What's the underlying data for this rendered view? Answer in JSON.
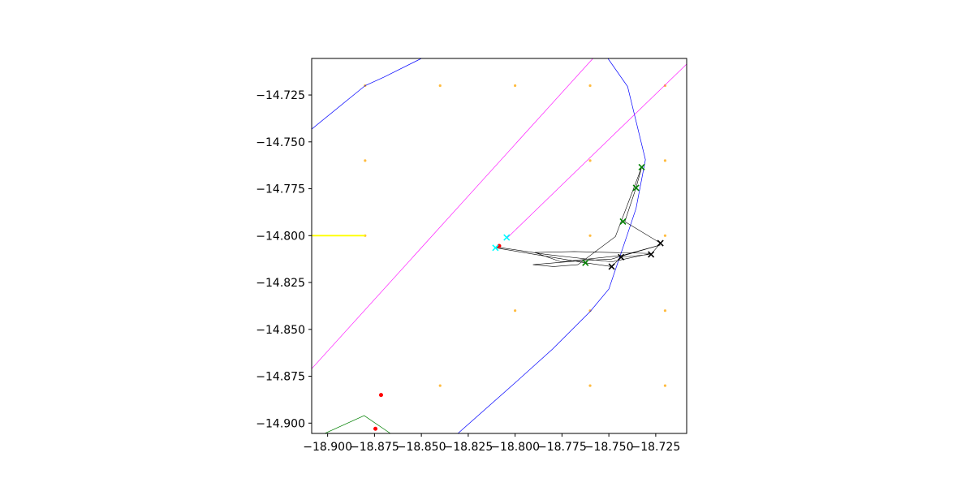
{
  "chart_data": {
    "type": "scatter",
    "title": "",
    "xlabel": "",
    "ylabel": "",
    "xlim": [
      -18.9085,
      -18.7085
    ],
    "ylim": [
      -14.9055,
      -14.7055
    ],
    "grid": false,
    "legend": "none",
    "x_ticks": [
      {
        "value": -18.9,
        "label": "−18.900"
      },
      {
        "value": -18.875,
        "label": "−18.875"
      },
      {
        "value": -18.85,
        "label": "−18.850"
      },
      {
        "value": -18.825,
        "label": "−18.825"
      },
      {
        "value": -18.8,
        "label": "−18.800"
      },
      {
        "value": -18.775,
        "label": "−18.775"
      },
      {
        "value": -18.75,
        "label": "−18.750"
      },
      {
        "value": -18.725,
        "label": "−18.725"
      }
    ],
    "y_ticks": [
      {
        "value": -14.725,
        "label": "−14.725"
      },
      {
        "value": -14.75,
        "label": "−14.750"
      },
      {
        "value": -14.775,
        "label": "−14.775"
      },
      {
        "value": -14.8,
        "label": "−14.800"
      },
      {
        "value": -14.825,
        "label": "−14.825"
      },
      {
        "value": -14.85,
        "label": "−14.850"
      },
      {
        "value": -14.875,
        "label": "−14.875"
      },
      {
        "value": -14.9,
        "label": "−14.900"
      }
    ],
    "colors": {
      "grid_points": "#ffa500",
      "blue_lines": "#0000ff",
      "magenta_lines": "#ff00ff",
      "yellow_line": "#ffff00",
      "green_line": "#008000",
      "red_points": "#ff0000",
      "path": "#000000",
      "black_markers": "#000000",
      "green_markers": "#008000",
      "cyan_markers": "#00ffff"
    },
    "grid_points": [
      [
        -18.88,
        -14.72
      ],
      [
        -18.84,
        -14.72
      ],
      [
        -18.8,
        -14.72
      ],
      [
        -18.76,
        -14.72
      ],
      [
        -18.72,
        -14.72
      ],
      [
        -18.88,
        -14.76
      ],
      [
        -18.76,
        -14.76
      ],
      [
        -18.72,
        -14.76
      ],
      [
        -18.88,
        -14.8
      ],
      [
        -18.76,
        -14.8
      ],
      [
        -18.72,
        -14.8
      ],
      [
        -18.8,
        -14.84
      ],
      [
        -18.76,
        -14.84
      ],
      [
        -18.72,
        -14.84
      ],
      [
        -18.84,
        -14.88
      ],
      [
        -18.76,
        -14.88
      ],
      [
        -18.72,
        -14.88
      ]
    ],
    "blue_lines": [
      [
        [
          -18.9085,
          -14.7432
        ],
        [
          -18.88,
          -14.72
        ],
        [
          -18.87,
          -14.7155
        ],
        [
          -18.85,
          -14.7055
        ]
      ],
      [
        [
          -18.7505,
          -14.7055
        ],
        [
          -18.74,
          -14.7205
        ],
        [
          -18.7305,
          -14.7595
        ],
        [
          -18.7355,
          -14.7855
        ],
        [
          -18.7405,
          -14.8005
        ],
        [
          -18.75,
          -14.8285
        ],
        [
          -18.76,
          -14.8405
        ],
        [
          -18.78,
          -14.8605
        ],
        [
          -18.8,
          -14.8785
        ],
        [
          -18.8305,
          -14.9055
        ]
      ]
    ],
    "magenta_lines": [
      [
        [
          -18.9085,
          -14.871
        ],
        [
          -18.7585,
          -14.7055
        ]
      ],
      [
        [
          -18.8045,
          -14.8015
        ],
        [
          -18.7085,
          -14.7085
        ]
      ]
    ],
    "yellow_line": [
      [
        -18.9085,
        -14.8
      ],
      [
        -18.88,
        -14.8
      ]
    ],
    "green_line": [
      [
        -18.9015,
        -14.9055
      ],
      [
        -18.8805,
        -14.896
      ],
      [
        -18.8665,
        -14.9055
      ]
    ],
    "red_points": [
      [
        -18.8085,
        -14.8055
      ],
      [
        -18.8715,
        -14.885
      ],
      [
        -18.8745,
        -14.903
      ]
    ],
    "path_points": [
      [
        -18.8105,
        -14.8065
      ],
      [
        -18.7625,
        -14.8145
      ],
      [
        -18.7485,
        -14.8165
      ],
      [
        -18.7435,
        -14.8115
      ],
      [
        -18.7275,
        -14.81
      ],
      [
        -18.7225,
        -14.804
      ],
      [
        -18.7415,
        -14.7925
      ],
      [
        -18.7355,
        -14.7745
      ],
      [
        -18.7325,
        -14.7635
      ],
      [
        -18.7465,
        -14.8005
      ],
      [
        -18.7665,
        -14.8155
      ],
      [
        -18.7795,
        -14.8165
      ],
      [
        -18.7905,
        -14.8155
      ],
      [
        -18.7665,
        -14.8135
      ],
      [
        -18.7485,
        -14.8125
      ],
      [
        -18.7225,
        -14.805
      ],
      [
        -18.7425,
        -14.8105
      ],
      [
        -18.7755,
        -14.814
      ],
      [
        -18.7895,
        -14.809
      ],
      [
        -18.7685,
        -14.8085
      ],
      [
        -18.7275,
        -14.8095
      ],
      [
        -18.7485,
        -14.814
      ],
      [
        -18.7835,
        -14.81
      ],
      [
        -18.8105,
        -14.806
      ]
    ],
    "black_markers": [
      [
        -18.7485,
        -14.8165
      ],
      [
        -18.7435,
        -14.8115
      ],
      [
        -18.7275,
        -14.81
      ],
      [
        -18.7225,
        -14.804
      ]
    ],
    "green_markers": [
      [
        -18.7325,
        -14.7635
      ],
      [
        -18.7355,
        -14.7745
      ],
      [
        -18.7425,
        -14.7925
      ],
      [
        -18.7625,
        -14.8145
      ]
    ],
    "cyan_markers": [
      [
        -18.8105,
        -14.8065
      ],
      [
        -18.8045,
        -14.801
      ]
    ]
  }
}
